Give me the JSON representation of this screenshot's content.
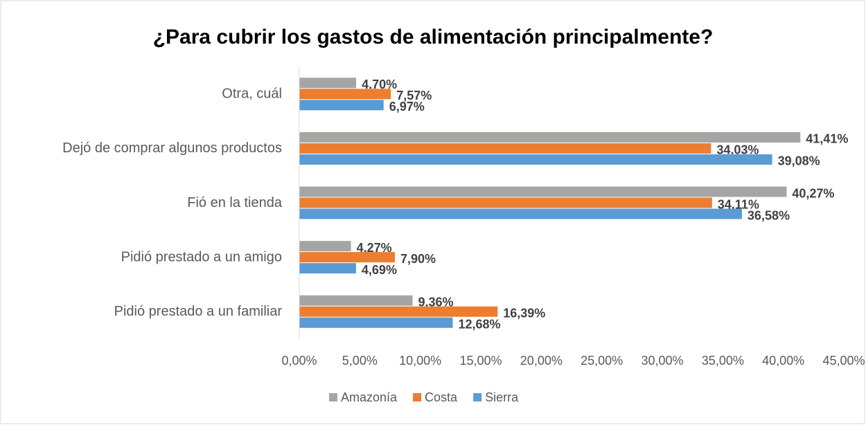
{
  "chart_data": {
    "type": "hbar",
    "title": "¿Para cubrir los gastos de alimentación principalmente?",
    "categories": [
      "Otra, cuál",
      "Dejó de comprar algunos productos",
      "Fió en la tienda",
      "Pidió prestado a un amigo",
      "Pidió prestado a un familiar"
    ],
    "series": [
      {
        "name": "Amazonía",
        "color": "#a5a5a5",
        "values": [
          4.7,
          41.41,
          40.27,
          4.27,
          9.36
        ],
        "value_labels": [
          "4,70%",
          "41,41%",
          "40,27%",
          "4,27%",
          "9,36%"
        ]
      },
      {
        "name": "Costa",
        "color": "#ed7d31",
        "values": [
          7.57,
          34.03,
          34.11,
          7.9,
          16.39
        ],
        "value_labels": [
          "7,57%",
          "34,03%",
          "34,11%",
          "7,90%",
          "16,39%"
        ]
      },
      {
        "name": "Sierra",
        "color": "#5b9bd5",
        "values": [
          6.97,
          39.08,
          36.58,
          4.69,
          12.68
        ],
        "value_labels": [
          "6,97%",
          "39,08%",
          "36,58%",
          "4,69%",
          "12,68%"
        ]
      }
    ],
    "xlim": [
      0,
      45
    ],
    "xticks": [
      {
        "value": 0,
        "label": "0,00%"
      },
      {
        "value": 5,
        "label": "5,00%"
      },
      {
        "value": 10,
        "label": "10,00%"
      },
      {
        "value": 15,
        "label": "15,00%"
      },
      {
        "value": 20,
        "label": "20,00%"
      },
      {
        "value": 25,
        "label": "25,00%"
      },
      {
        "value": 30,
        "label": "30,00%"
      },
      {
        "value": 35,
        "label": "35,00%"
      },
      {
        "value": 40,
        "label": "40,00%"
      },
      {
        "value": 45,
        "label": "45,00%"
      }
    ],
    "legend": "bottom"
  }
}
